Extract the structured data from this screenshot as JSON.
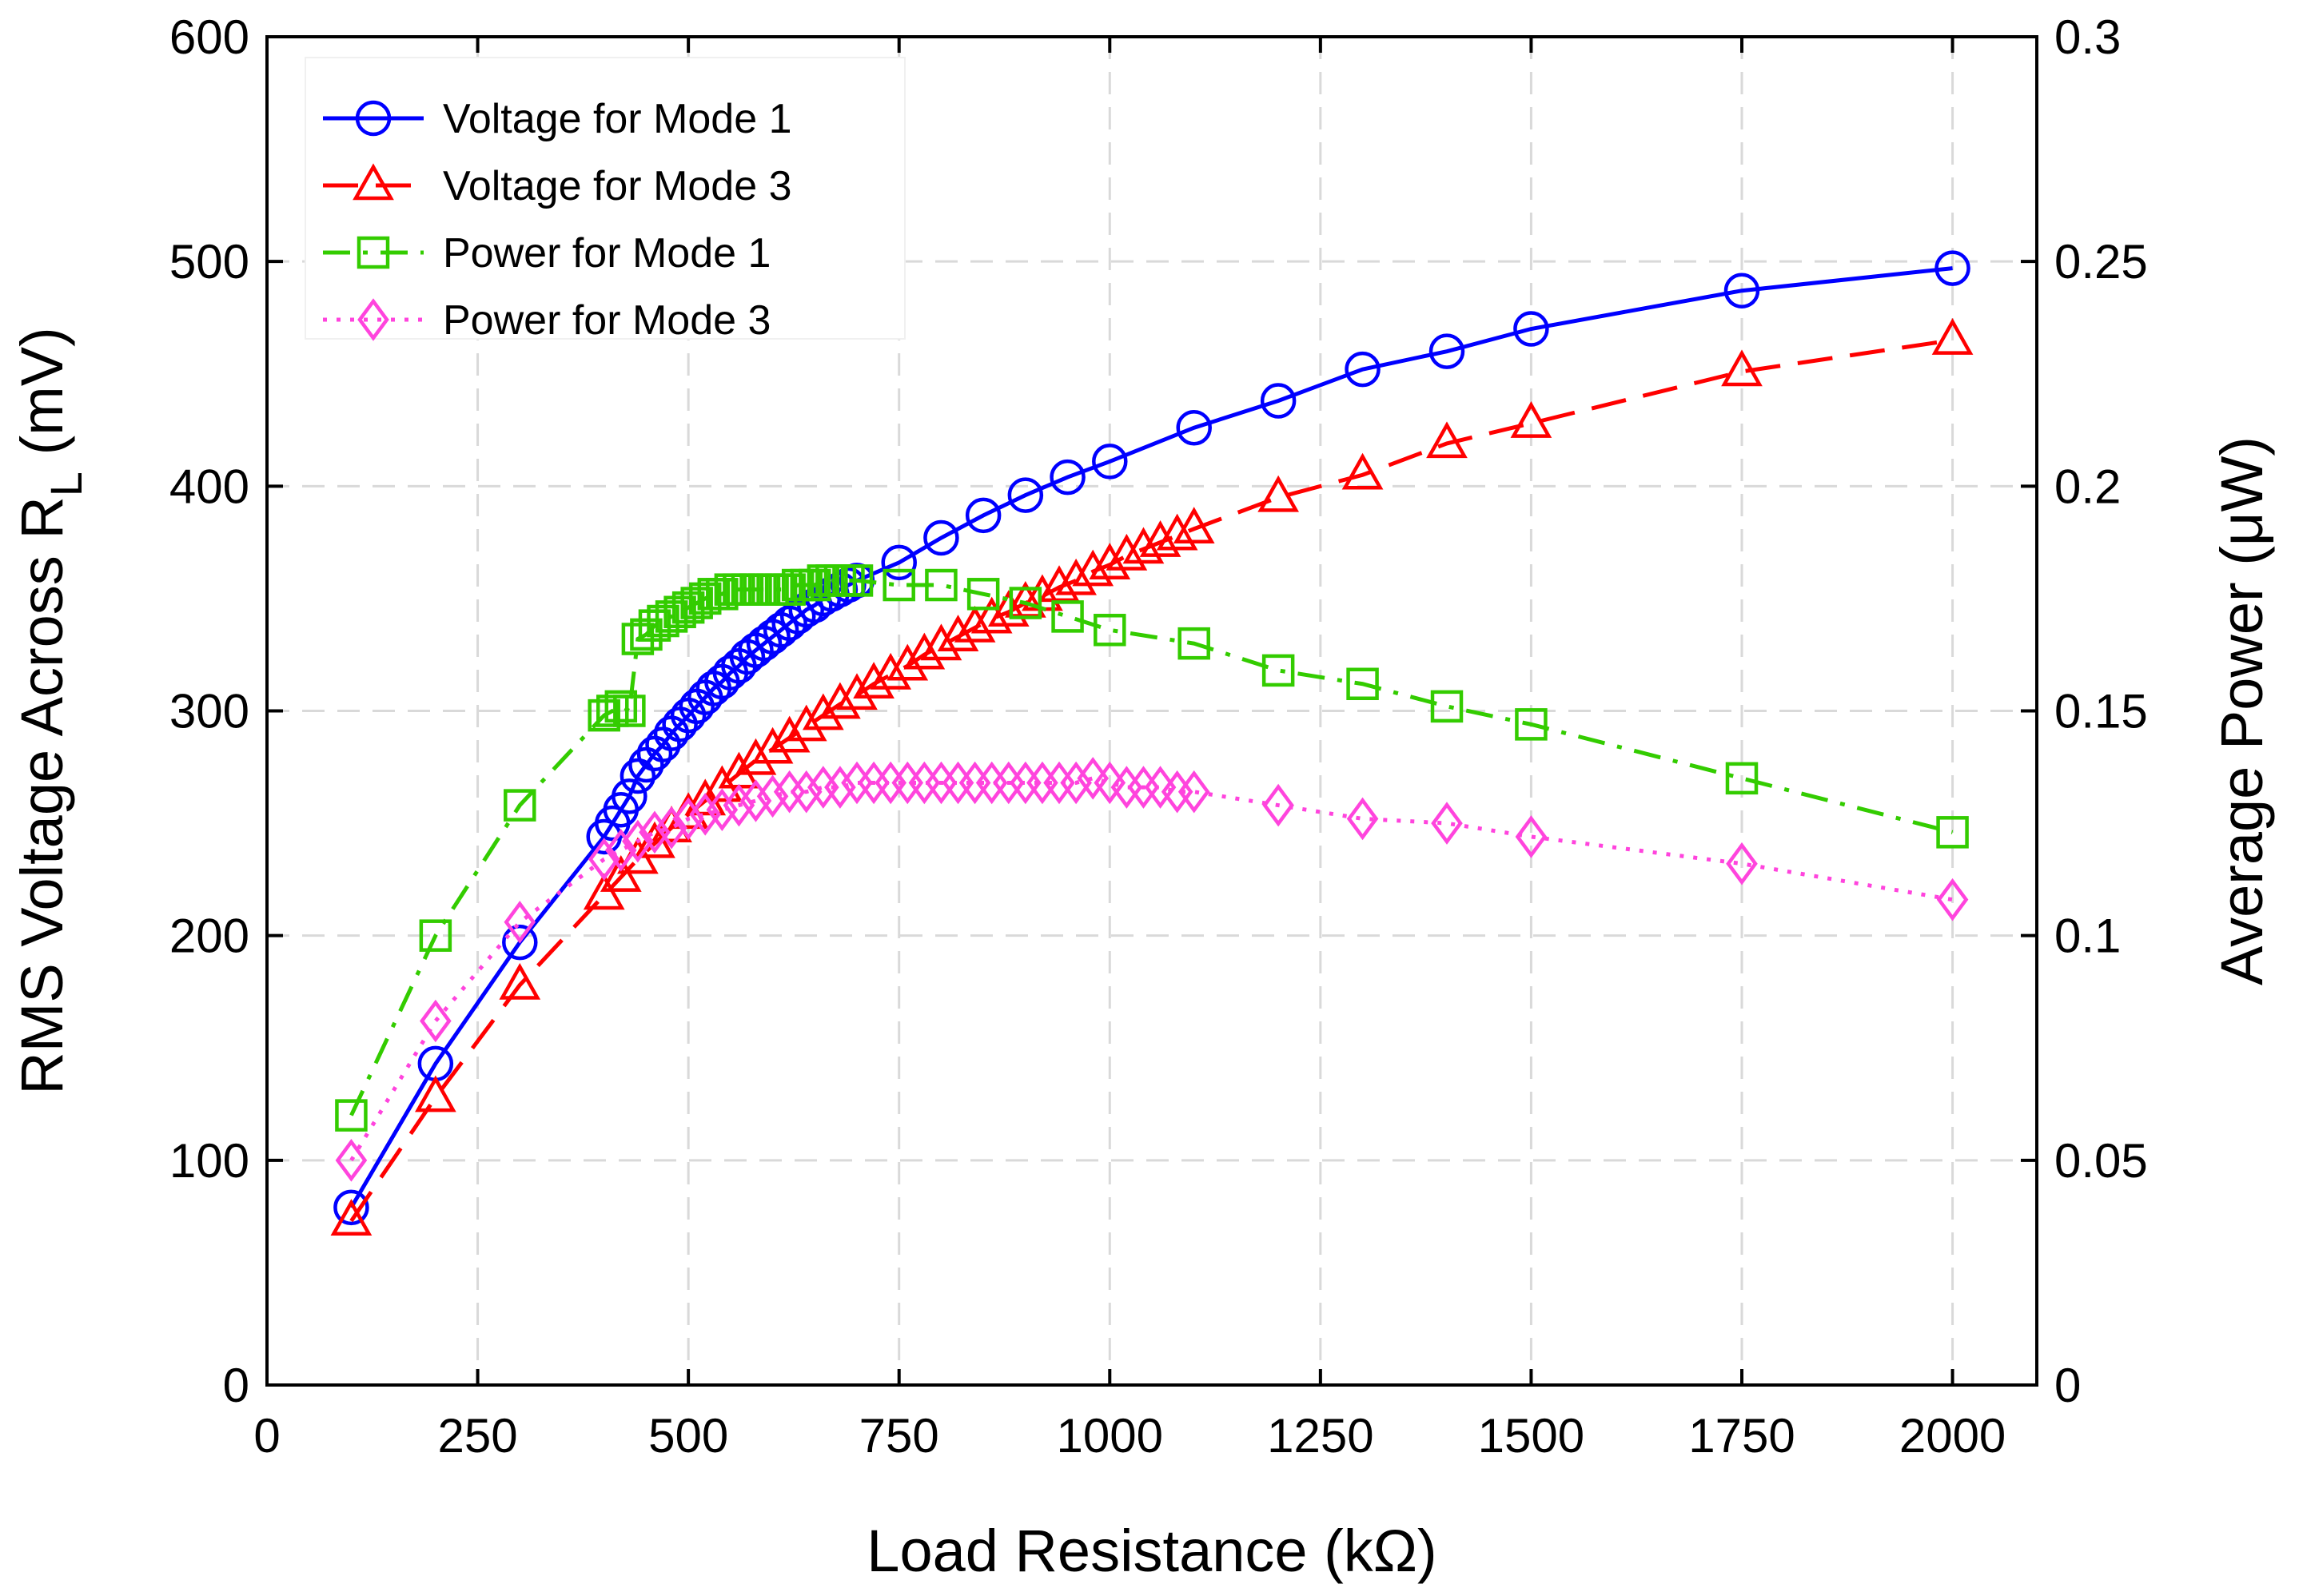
{
  "chart_data": {
    "type": "line",
    "xlabel": "Load Resistance (kΩ)",
    "ylabel_left": "RMS Voltage Across R",
    "ylabel_left_subscript": "L",
    "ylabel_left_suffix": " (mV)",
    "ylabel_right": "Average Power (μW)",
    "xlim": [
      0,
      2100
    ],
    "ylim_left": [
      0,
      600
    ],
    "ylim_right": [
      0,
      0.3
    ],
    "x_ticks": [
      0,
      250,
      500,
      750,
      1000,
      1250,
      1500,
      1750,
      2000
    ],
    "x_tick_labels": [
      "0",
      "250",
      "500",
      "750",
      "1000",
      "1250",
      "1500",
      "1750",
      "2000"
    ],
    "y_left_ticks": [
      0,
      100,
      200,
      300,
      400,
      500,
      600
    ],
    "y_left_tick_labels": [
      "0",
      "100",
      "200",
      "300",
      "400",
      "500",
      "600"
    ],
    "y_right_ticks": [
      0,
      0.05,
      0.1,
      0.15,
      0.2,
      0.25,
      0.3
    ],
    "y_right_tick_labels": [
      "0",
      "0.05",
      "0.1",
      "0.15",
      "0.2",
      "0.25",
      "0.3"
    ],
    "grid": true,
    "legend_position": "top-left",
    "series": [
      {
        "name": "Voltage for Mode 1",
        "axis": "left",
        "color": "#0000ff",
        "marker": "circle",
        "linestyle": "solid",
        "x": [
          100,
          200,
          300,
          400,
          410,
          420,
          430,
          440,
          450,
          460,
          470,
          480,
          490,
          500,
          510,
          520,
          530,
          540,
          550,
          560,
          570,
          580,
          590,
          600,
          610,
          620,
          630,
          640,
          650,
          660,
          670,
          680,
          690,
          700,
          750,
          800,
          850,
          900,
          950,
          1000,
          1100,
          1200,
          1300,
          1400,
          1500,
          1750,
          2000
        ],
        "y": [
          79,
          143,
          197,
          244,
          250,
          256,
          262,
          271,
          276,
          281,
          285,
          290,
          294,
          298,
          302,
          306,
          310,
          313,
          317,
          320,
          324,
          327,
          330,
          333,
          336,
          339,
          342,
          345,
          347,
          350,
          352,
          354,
          356,
          358,
          366,
          377,
          387,
          396,
          404,
          411,
          426,
          438,
          452,
          460,
          470,
          487,
          497
        ]
      },
      {
        "name": "Voltage for Mode 3",
        "axis": "left",
        "color": "#ff0000",
        "marker": "triangle",
        "linestyle": "dashed",
        "x": [
          100,
          200,
          300,
          400,
          420,
          440,
          460,
          480,
          500,
          520,
          540,
          560,
          580,
          600,
          620,
          640,
          660,
          680,
          700,
          720,
          740,
          760,
          780,
          800,
          820,
          840,
          860,
          880,
          900,
          920,
          940,
          960,
          980,
          1000,
          1020,
          1040,
          1060,
          1080,
          1100,
          1200,
          1300,
          1400,
          1500,
          1750,
          2000
        ],
        "y": [
          73,
          128,
          178,
          218,
          226,
          234,
          241,
          248,
          254,
          260,
          266,
          272,
          278,
          283,
          288,
          293,
          298,
          303,
          307,
          312,
          316,
          320,
          325,
          329,
          333,
          337,
          341,
          344,
          348,
          351,
          355,
          358,
          362,
          365,
          369,
          372,
          375,
          378,
          381,
          395,
          405,
          419,
          428,
          451,
          465
        ]
      },
      {
        "name": "Power for Mode 1",
        "axis": "right",
        "color": "#33cc00",
        "marker": "square",
        "linestyle": "dashdot",
        "x": [
          100,
          200,
          300,
          400,
          410,
          420,
          430,
          440,
          450,
          460,
          470,
          480,
          490,
          500,
          510,
          520,
          530,
          540,
          550,
          560,
          570,
          580,
          590,
          600,
          610,
          620,
          630,
          640,
          650,
          660,
          670,
          680,
          690,
          700,
          750,
          800,
          850,
          900,
          950,
          1000,
          1100,
          1200,
          1300,
          1400,
          1500,
          1750,
          2000
        ],
        "y": [
          0.06,
          0.1,
          0.129,
          0.149,
          0.15,
          0.151,
          0.15,
          0.166,
          0.167,
          0.169,
          0.17,
          0.171,
          0.172,
          0.173,
          0.174,
          0.175,
          0.176,
          0.176,
          0.177,
          0.177,
          0.177,
          0.177,
          0.177,
          0.177,
          0.177,
          0.177,
          0.178,
          0.178,
          0.178,
          0.179,
          0.179,
          0.179,
          0.179,
          0.179,
          0.178,
          0.178,
          0.176,
          0.174,
          0.171,
          0.168,
          0.165,
          0.159,
          0.156,
          0.151,
          0.147,
          0.135,
          0.123
        ]
      },
      {
        "name": "Power for Mode 3",
        "axis": "right",
        "color": "#ff44dd",
        "marker": "diamond",
        "linestyle": "dotted",
        "x": [
          100,
          200,
          300,
          400,
          420,
          440,
          460,
          480,
          500,
          520,
          540,
          560,
          580,
          600,
          620,
          640,
          660,
          680,
          700,
          720,
          740,
          760,
          780,
          800,
          820,
          840,
          860,
          880,
          900,
          920,
          940,
          960,
          980,
          1000,
          1020,
          1040,
          1060,
          1080,
          1100,
          1200,
          1300,
          1400,
          1500,
          1750,
          2000
        ],
        "y": [
          0.05,
          0.081,
          0.103,
          0.117,
          0.119,
          0.121,
          0.123,
          0.124,
          0.126,
          0.127,
          0.128,
          0.129,
          0.13,
          0.131,
          0.132,
          0.132,
          0.133,
          0.133,
          0.134,
          0.134,
          0.134,
          0.134,
          0.134,
          0.134,
          0.134,
          0.134,
          0.134,
          0.134,
          0.134,
          0.134,
          0.134,
          0.134,
          0.135,
          0.134,
          0.133,
          0.133,
          0.133,
          0.132,
          0.132,
          0.129,
          0.126,
          0.125,
          0.122,
          0.116,
          0.108
        ]
      }
    ]
  }
}
